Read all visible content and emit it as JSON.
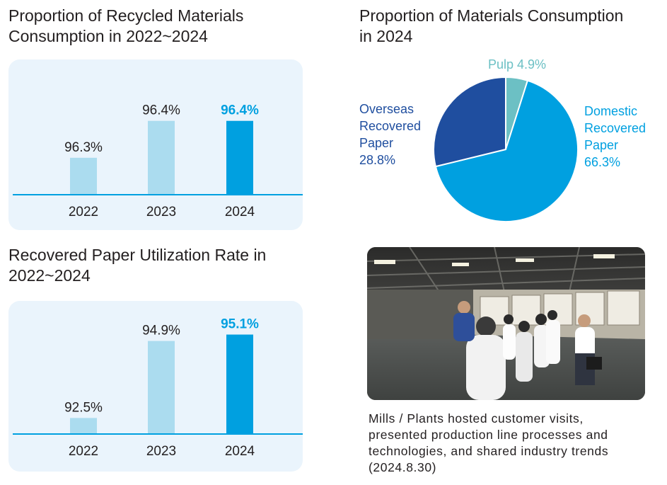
{
  "colors": {
    "light_bar": "#abdcef",
    "highlight_bar": "#00a0e0",
    "axis": "#00a0e0",
    "panel_bg": "#eaf4fc",
    "pie_domestic": "#00a0e0",
    "pie_overseas": "#1f4e9f",
    "pie_pulp": "#6cc0c4"
  },
  "chart_data": [
    {
      "type": "bar",
      "title": "Proportion of Recycled Materials\nConsumption in 2022~2024",
      "categories": [
        "2022",
        "2023",
        "2024"
      ],
      "values": [
        96.3,
        96.4,
        96.4
      ],
      "value_labels": [
        "96.3%",
        "96.4%",
        "96.4%"
      ],
      "highlight_index": 2,
      "ylim": [
        96.2,
        96.48
      ],
      "xlabel": "",
      "ylabel": "",
      "grid": false
    },
    {
      "type": "bar",
      "title": "Recovered Paper Utilization Rate in\n2022~2024",
      "categories": [
        "2022",
        "2023",
        "2024"
      ],
      "values": [
        92.5,
        94.9,
        95.1
      ],
      "value_labels": [
        "92.5%",
        "94.9%",
        "95.1%"
      ],
      "highlight_index": 2,
      "ylim": [
        92.0,
        95.2
      ],
      "xlabel": "",
      "ylabel": "",
      "grid": false
    },
    {
      "type": "pie",
      "title": "Proportion of Materials Consumption\nin 2024",
      "slices": [
        {
          "name": "Pulp",
          "label_lines": [
            "Pulp 4.9%"
          ],
          "value": 4.9,
          "color": "#6cc0c4"
        },
        {
          "name": "Domestic Recovered Paper",
          "label_lines": [
            "Domestic",
            "Recovered",
            "Paper",
            "66.3%"
          ],
          "value": 66.3,
          "color": "#00a0e0"
        },
        {
          "name": "Overseas Recovered Paper",
          "label_lines": [
            "Overseas",
            "Recovered",
            "Paper",
            "28.8%"
          ],
          "value": 28.8,
          "color": "#1f4e9f"
        }
      ]
    }
  ],
  "photo": {
    "caption": "Mills / Plants hosted customer visits,\npresented production line processes and\ntechnologies, and shared industry trends\n(2024.8.30)"
  }
}
